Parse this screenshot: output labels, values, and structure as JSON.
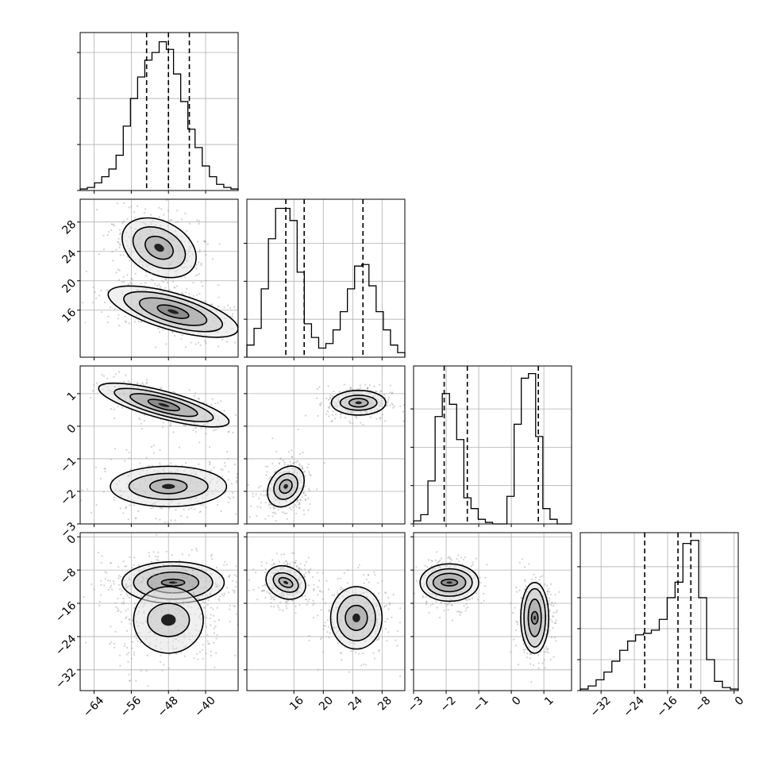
{
  "chart_data": {
    "type": "corner",
    "grid": true,
    "parameters": [
      {
        "range": [
          -67,
          -33
        ],
        "ticks": [
          -64,
          -56,
          -48,
          -40
        ],
        "tick_labels": [
          "−64",
          "−56",
          "−48",
          "−40"
        ]
      },
      {
        "range": [
          9.6,
          31.1
        ],
        "ticks": [
          16,
          20,
          24,
          28
        ],
        "tick_labels": [
          "16",
          "20",
          "24",
          "28"
        ]
      },
      {
        "range": [
          -3.0,
          1.85
        ],
        "ticks": [
          -3,
          -2,
          -1,
          0,
          1
        ],
        "tick_labels": [
          "−3",
          "−2",
          "−1",
          "0",
          "1"
        ]
      },
      {
        "range": [
          -37,
          1
        ],
        "ticks": [
          -32,
          -24,
          -16,
          -8,
          0
        ],
        "tick_labels": [
          "−32",
          "−24",
          "−16",
          "−8",
          "0"
        ]
      }
    ],
    "histograms": [
      {
        "counts": [
          1,
          2,
          5,
          9,
          14,
          23,
          42,
          60,
          74,
          85,
          90,
          97,
          92,
          76,
          58,
          40,
          28,
          16,
          9,
          4,
          2,
          1
        ],
        "quantiles": [
          -52.7,
          -48.0,
          -43.5
        ]
      },
      {
        "counts": [
          8,
          19,
          45,
          78,
          98,
          98,
          90,
          56,
          22,
          13,
          6,
          9,
          18,
          30,
          45,
          60,
          61,
          47,
          30,
          18,
          8,
          3
        ],
        "quantiles": [
          14.9,
          17.4,
          25.4
        ]
      },
      {
        "counts": [
          2,
          6,
          28,
          70,
          85,
          78,
          55,
          17,
          10,
          3,
          1,
          0,
          0,
          18,
          65,
          95,
          98,
          57,
          10,
          3,
          0,
          0
        ],
        "quantiles": [
          -2.06,
          -1.35,
          0.83
        ]
      },
      {
        "counts": [
          1,
          3,
          7,
          12,
          19,
          26,
          32,
          36,
          37,
          39,
          46,
          60,
          70,
          95,
          97,
          60,
          20,
          6,
          2,
          1
        ],
        "quantiles": [
          -21.5,
          -13.5,
          -10.4
        ]
      }
    ],
    "histogram_ylims": [
      [
        0,
        103
      ],
      [
        0,
        104
      ],
      [
        0,
        103
      ],
      [
        0,
        102
      ]
    ],
    "histogram_yticks": [
      [
        0,
        30,
        60,
        90
      ],
      [
        0,
        25,
        50,
        75
      ],
      [
        0,
        25,
        50,
        75
      ],
      [
        0,
        20,
        40,
        60,
        80
      ]
    ],
    "scatter_panels": [
      {
        "x_param": 0,
        "y_param": 1,
        "clusters": [
          {
            "center": [
              -50,
              24.5
            ],
            "spread": [
              3.5,
              1.6
            ],
            "rotation": -28,
            "sigma_levels": [
              [
                3.2,
                1.4
              ],
              [
                6,
                2.5
              ],
              [
                8.5,
                3.6
              ]
            ]
          },
          {
            "center": [
              -47,
              15.8
            ],
            "spread": [
              5,
              1.2
            ],
            "rotation": -16,
            "sigma_levels": [
              [
                3.5,
                0.7
              ],
              [
                7.5,
                1.4
              ],
              [
                11,
                2
              ],
              [
                14.5,
                2.5
              ]
            ]
          }
        ]
      },
      {
        "x_param": 0,
        "y_param": 2,
        "clusters": [
          {
            "center": [
              -49,
              0.65
            ],
            "spread": [
              4.5,
              0.18
            ],
            "rotation": -15,
            "sigma_levels": [
              [
                3.5,
                0.12
              ],
              [
                7.5,
                0.22
              ],
              [
                11,
                0.32
              ],
              [
                14.5,
                0.42
              ]
            ]
          },
          {
            "center": [
              -48,
              -1.85
            ],
            "spread": [
              5,
              0.3
            ],
            "rotation": 0,
            "sigma_levels": [
              [
                4,
                0.22
              ],
              [
                8.5,
                0.4
              ],
              [
                12.5,
                0.62
              ]
            ]
          }
        ]
      },
      {
        "x_param": 1,
        "y_param": 2,
        "clusters": [
          {
            "center": [
              24.8,
              0.72
            ],
            "spread": [
              1.4,
              0.17
            ],
            "rotation": 0,
            "sigma_levels": [
              [
                1.3,
                0.13
              ],
              [
                2.5,
                0.23
              ],
              [
                3.7,
                0.38
              ]
            ]
          },
          {
            "center": [
              14.9,
              -1.85
            ],
            "spread": [
              1,
              0.3
            ],
            "rotation": -35,
            "sigma_levels": [
              [
                0.8,
                0.22
              ],
              [
                1.5,
                0.42
              ],
              [
                2.2,
                0.68
              ]
            ]
          }
        ]
      },
      {
        "x_param": 0,
        "y_param": 3,
        "clusters": [
          {
            "center": [
              -47,
              -11
            ],
            "spread": [
              5,
              2.2
            ],
            "rotation": 0,
            "sigma_levels": [
              [
                2.5,
                0.8
              ],
              [
                5.5,
                2.5
              ],
              [
                8.5,
                4
              ],
              [
                11,
                5
              ]
            ]
          },
          {
            "center": [
              -48,
              -20
            ],
            "spread": [
              4,
              4
            ],
            "rotation": 0,
            "sigma_levels": [
              [
                4.5,
                4
              ],
              [
                7.5,
                8
              ]
            ]
          }
        ]
      },
      {
        "x_param": 1,
        "y_param": 3,
        "clusters": [
          {
            "center": [
              14.9,
              -11
            ],
            "spread": [
              1.1,
              1.8
            ],
            "rotation": -25,
            "sigma_levels": [
              [
                1,
                1
              ],
              [
                1.8,
                2.1
              ],
              [
                2.8,
                3.8
              ]
            ]
          },
          {
            "center": [
              24.5,
              -19.5
            ],
            "spread": [
              1.5,
              3
            ],
            "rotation": 0,
            "sigma_levels": [
              [
                1.5,
                3
              ],
              [
                2.6,
                5.5
              ],
              [
                3.5,
                7.5
              ]
            ]
          }
        ]
      },
      {
        "x_param": 2,
        "y_param": 3,
        "clusters": [
          {
            "center": [
              -1.9,
              -11
            ],
            "spread": [
              0.3,
              2
            ],
            "rotation": 0,
            "sigma_levels": [
              [
                0.25,
                0.8
              ],
              [
                0.5,
                2.2
              ],
              [
                0.7,
                3.3
              ],
              [
                0.9,
                4.5
              ]
            ]
          },
          {
            "center": [
              0.72,
              -19.5
            ],
            "spread": [
              0.2,
              3
            ],
            "rotation": 0,
            "sigma_levels": [
              [
                0.1,
                1.5
              ],
              [
                0.2,
                4.5
              ],
              [
                0.33,
                7
              ],
              [
                0.43,
                8.5
              ]
            ]
          }
        ]
      }
    ]
  }
}
